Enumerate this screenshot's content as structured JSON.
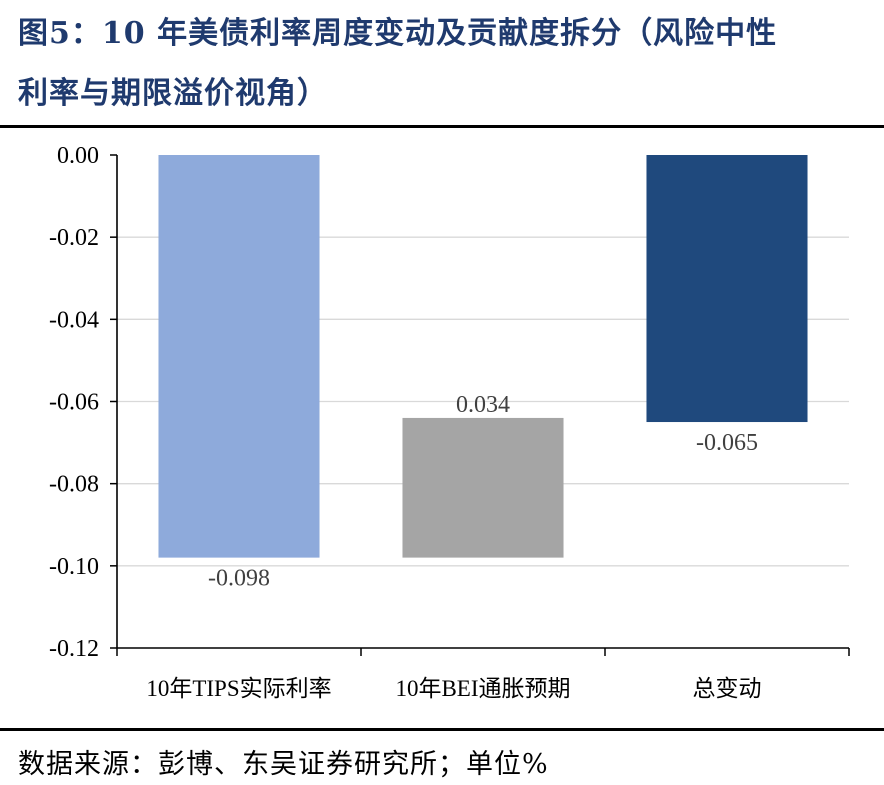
{
  "header": {
    "line1": "图5：10 年美债利率周度变动及贡献度拆分（风险中性",
    "line2": "利率与期限溢价视角）"
  },
  "footer": {
    "source": "数据来源：彭博、东吴证券研究所；单位%"
  },
  "chart_data": {
    "type": "bar",
    "subtype": "waterfall",
    "categories": [
      "10年TIPS实际利率",
      "10年BEI通胀预期",
      "总变动"
    ],
    "values": [
      -0.098,
      0.034,
      -0.065
    ],
    "data_labels": [
      "-0.098",
      "0.034",
      "-0.065"
    ],
    "ylim": [
      -0.12,
      0.0
    ],
    "yticks": [
      "0.00",
      "-0.02",
      "-0.04",
      "-0.06",
      "-0.08",
      "-0.10",
      "-0.12"
    ],
    "grid": true,
    "colors": [
      "#8eaadb",
      "#a5a5a5",
      "#1f497d"
    ]
  }
}
